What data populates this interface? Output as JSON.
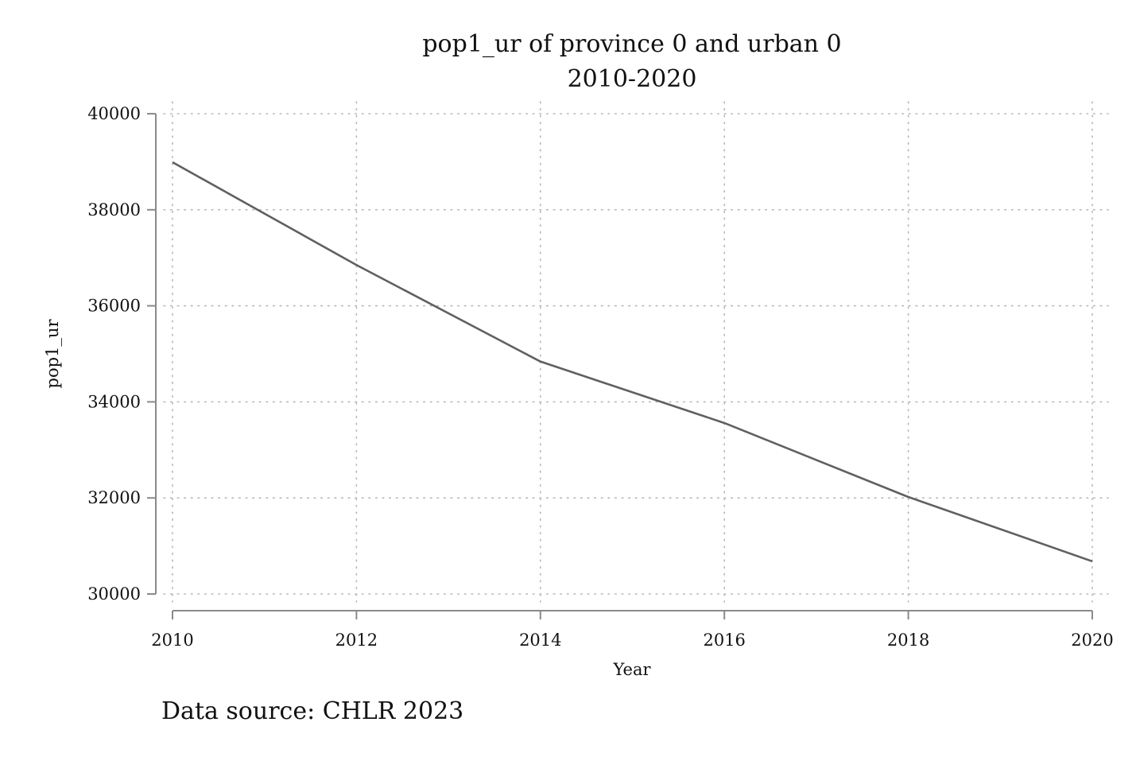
{
  "chart_data": {
    "type": "line",
    "title": "pop1_ur of province 0 and urban 0",
    "subtitle": "2010-2020",
    "xlabel": "Year",
    "ylabel": "pop1_ur",
    "x": [
      2010,
      2012,
      2014,
      2016,
      2018,
      2020
    ],
    "x_ticks": [
      "2010",
      "2012",
      "2014",
      "2016",
      "2018",
      "2020"
    ],
    "y_ticks": [
      "30000",
      "32000",
      "34000",
      "36000",
      "38000",
      "40000"
    ],
    "xlim": [
      2010,
      2020
    ],
    "ylim": [
      30000,
      40000
    ],
    "grid": true,
    "series": [
      {
        "values": [
          38990,
          36850,
          34840,
          33560,
          32020,
          30680
        ],
        "color": "#606060"
      }
    ],
    "source": "Data source: CHLR 2023"
  }
}
